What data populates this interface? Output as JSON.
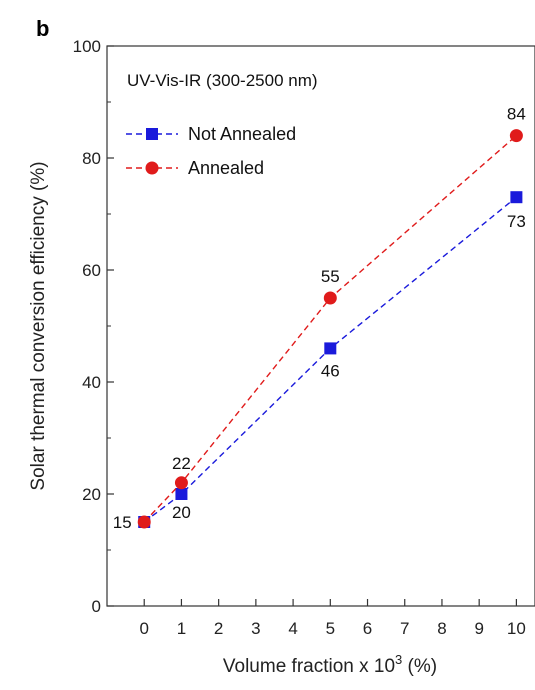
{
  "panel_label": "b",
  "chart_data": {
    "type": "line",
    "annotation": "UV-Vis-IR (300-2500 nm)",
    "xlabel": "Volume fraction x 10",
    "xlabel_sup": "3",
    "xlabel_suffix": " (%)",
    "ylabel": "Solar thermal conversion efficiency (%)",
    "xlim": [
      -1,
      10.5
    ],
    "ylim": [
      0,
      100
    ],
    "x_ticks": [
      0,
      1,
      2,
      3,
      4,
      5,
      6,
      7,
      8,
      9,
      10
    ],
    "y_ticks": [
      0,
      20,
      40,
      60,
      80,
      100
    ],
    "grid": false,
    "legend_position": "top-left",
    "series": [
      {
        "name": "Not Annealed",
        "marker": "square",
        "color": "#1a1adb",
        "x": [
          0,
          1,
          5,
          10
        ],
        "values": [
          15,
          20,
          46,
          73
        ],
        "labels": [
          "",
          "20",
          "46",
          "73"
        ]
      },
      {
        "name": "Annealed",
        "marker": "circle",
        "color": "#e01b1b",
        "x": [
          0,
          1,
          5,
          10
        ],
        "values": [
          15,
          22,
          55,
          84
        ],
        "labels": [
          "15",
          "22",
          "55",
          "84"
        ]
      }
    ]
  }
}
